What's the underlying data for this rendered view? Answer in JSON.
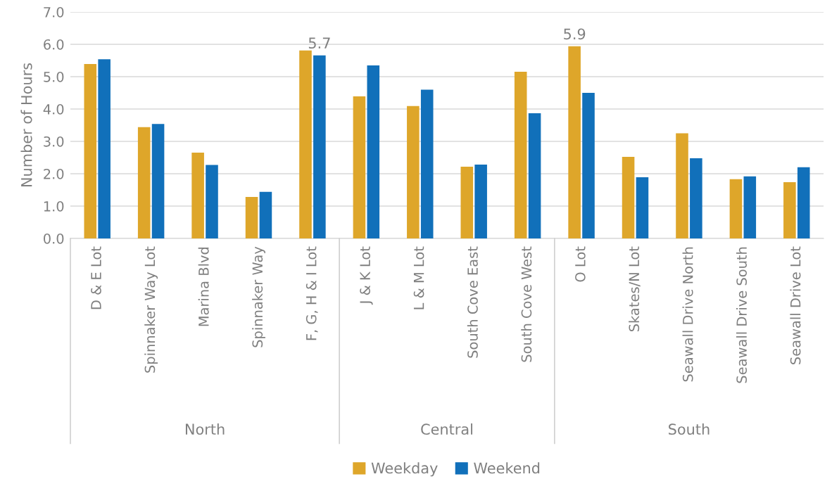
{
  "chart_data": {
    "type": "bar",
    "ylabel": "Number of Hours",
    "categories": [
      "D & E Lot",
      "Spinnaker Way Lot",
      "Marina Blvd",
      "Spinnaker Way",
      "F, G, H & I Lot",
      "J & K Lot",
      "L & M Lot",
      "South Cove East",
      "South Cove West",
      "O Lot",
      "Skates/N Lot",
      "Seawall Drive North",
      "Seawall Drive South",
      "Seawall Drive Lot"
    ],
    "series": [
      {
        "name": "Weekday",
        "color": "#dea62a",
        "values": [
          5.39,
          3.44,
          2.65,
          1.28,
          5.81,
          4.39,
          4.09,
          2.22,
          5.15,
          5.94,
          2.52,
          3.25,
          1.83,
          1.74
        ],
        "value_labels": [
          null,
          null,
          null,
          null,
          null,
          null,
          null,
          null,
          null,
          "5.9",
          null,
          null,
          null,
          null
        ]
      },
      {
        "name": "Weekend",
        "color": "#1170ba",
        "values": [
          5.54,
          3.54,
          2.27,
          1.44,
          5.66,
          5.35,
          4.6,
          2.28,
          3.87,
          4.5,
          1.89,
          2.48,
          1.92,
          2.2
        ],
        "value_labels": [
          null,
          null,
          null,
          null,
          "5.7",
          null,
          null,
          null,
          null,
          null,
          null,
          null,
          null,
          null
        ]
      }
    ],
    "annotations": [
      "North",
      "Central",
      "South"
    ],
    "ylim": [
      0,
      7
    ],
    "yticks": [
      {
        "value": 0,
        "label": "0.0"
      },
      {
        "value": 1,
        "label": "1.0"
      },
      {
        "value": 2,
        "label": "2.0"
      },
      {
        "value": 3,
        "label": "3.0"
      },
      {
        "value": 4,
        "label": "4.0"
      },
      {
        "value": 5,
        "label": "5.0"
      },
      {
        "value": 6,
        "label": "6.0"
      },
      {
        "value": 7,
        "label": "7.0"
      }
    ],
    "grid": "y",
    "legend": "bottom"
  }
}
